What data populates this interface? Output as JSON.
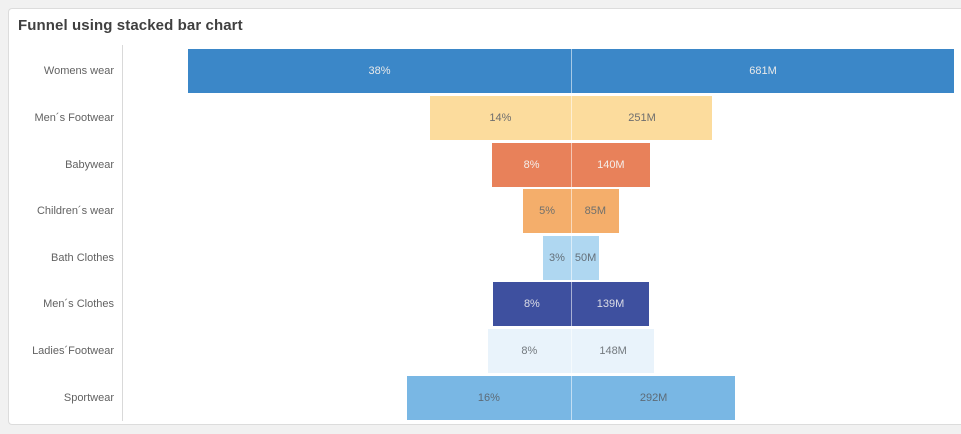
{
  "title": "Funnel using stacked bar chart",
  "chart_data": {
    "type": "bar",
    "subtype": "funnel-stacked-bar",
    "orientation": "horizontal",
    "title": "Funnel using stacked bar chart",
    "legend": false,
    "grid": false,
    "x_axis_visible": false,
    "categories": [
      "Womens wear",
      "Men´s Footwear",
      "Babywear",
      "Children´s wear",
      "Bath Clothes",
      "Men´s Clothes",
      "Ladies´Footwear",
      "Sportwear"
    ],
    "series": [
      {
        "name": "share-percent",
        "labels": [
          "38%",
          "14%",
          "8%",
          "5%",
          "3%",
          "8%",
          "8%",
          "16%"
        ],
        "values": [
          38,
          14,
          8,
          5,
          3,
          8,
          8,
          16
        ]
      },
      {
        "name": "sales-millions",
        "labels": [
          "681M",
          "251M",
          "140M",
          "85M",
          "50M",
          "139M",
          "148M",
          "292M"
        ],
        "values": [
          681,
          251,
          140,
          85,
          50,
          139,
          148,
          292
        ]
      }
    ],
    "max_value": 681,
    "bar_colors": [
      "#3b87c8",
      "#fcdc9d",
      "#e8815a",
      "#f4ae6b",
      "#afd7f1",
      "#3e509f",
      "#e9f3fb",
      "#79b7e4"
    ],
    "bar_label_colors": [
      "#e9e9e9",
      "#6e6e6e",
      "#f4eeea",
      "#70706c",
      "#64707a",
      "#dcdde6",
      "#73797e",
      "#5d6b77"
    ],
    "axis_label_color": "#626262",
    "axis_line_color": "#d9d9d9"
  }
}
